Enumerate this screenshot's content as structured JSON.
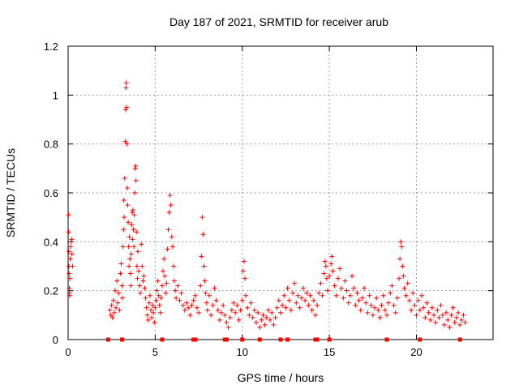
{
  "chart_data": {
    "type": "scatter",
    "title": "Day 187 of 2021, SRMTID for receiver arub",
    "xlabel": "GPS time / hours",
    "ylabel": "SRMTID / TECUs",
    "xlim": [
      0,
      24.4
    ],
    "ylim": [
      0,
      1.2
    ],
    "xticks": [
      0,
      5,
      10,
      15,
      20
    ],
    "yticks": [
      0,
      0.2,
      0.4,
      0.6,
      0.8,
      1,
      1.2
    ],
    "ytick_labels": [
      "0",
      "0.2",
      "0.4",
      "0.6",
      "0.8",
      "1",
      "1.2"
    ],
    "grid": true,
    "marker": "plus",
    "color": "#ff0000",
    "series": [
      {
        "name": "SRMTID",
        "points": [
          [
            0.02,
            0.51
          ],
          [
            0.03,
            0.44
          ],
          [
            0.04,
            0.36
          ],
          [
            0.05,
            0.3
          ],
          [
            0.06,
            0.27
          ],
          [
            0.07,
            0.21
          ],
          [
            0.08,
            0.19
          ],
          [
            0.09,
            0.18
          ],
          [
            0.1,
            0.25
          ],
          [
            0.12,
            0.33
          ],
          [
            0.15,
            0.38
          ],
          [
            0.18,
            0.4
          ],
          [
            0.2,
            0.41
          ],
          [
            0.22,
            0.35
          ],
          [
            0.25,
            0.3
          ],
          [
            2.4,
            0.12
          ],
          [
            2.45,
            0.1
          ],
          [
            2.5,
            0.14
          ],
          [
            2.55,
            0.09
          ],
          [
            2.6,
            0.16
          ],
          [
            2.65,
            0.11
          ],
          [
            2.7,
            0.2
          ],
          [
            2.75,
            0.13
          ],
          [
            2.8,
            0.24
          ],
          [
            2.85,
            0.15
          ],
          [
            2.9,
            0.19
          ],
          [
            2.95,
            0.12
          ],
          [
            3.0,
            0.27
          ],
          [
            3.05,
            0.31
          ],
          [
            3.1,
            0.22
          ],
          [
            3.12,
            0.17
          ],
          [
            3.15,
            0.38
          ],
          [
            3.18,
            0.45
          ],
          [
            3.2,
            0.57
          ],
          [
            3.22,
            0.5
          ],
          [
            3.25,
            0.66
          ],
          [
            3.28,
            0.81
          ],
          [
            3.3,
            0.94
          ],
          [
            3.32,
            1.03
          ],
          [
            3.34,
            1.05
          ],
          [
            3.36,
            0.95
          ],
          [
            3.38,
            0.8
          ],
          [
            3.4,
            0.62
          ],
          [
            3.42,
            0.55
          ],
          [
            3.45,
            0.48
          ],
          [
            3.48,
            0.38
          ],
          [
            3.5,
            0.3
          ],
          [
            3.52,
            0.42
          ],
          [
            3.55,
            0.33
          ],
          [
            3.58,
            0.27
          ],
          [
            3.6,
            0.22
          ],
          [
            3.62,
            0.35
          ],
          [
            3.65,
            0.47
          ],
          [
            3.68,
            0.52
          ],
          [
            3.7,
            0.41
          ],
          [
            3.72,
            0.53
          ],
          [
            3.75,
            0.45
          ],
          [
            3.78,
            0.38
          ],
          [
            3.8,
            0.51
          ],
          [
            3.82,
            0.6
          ],
          [
            3.85,
            0.7
          ],
          [
            3.88,
            0.71
          ],
          [
            3.9,
            0.65
          ],
          [
            3.92,
            0.44
          ],
          [
            3.95,
            0.3
          ],
          [
            3.98,
            0.25
          ],
          [
            4.0,
            0.36
          ],
          [
            4.05,
            0.28
          ],
          [
            4.1,
            0.22
          ],
          [
            4.15,
            0.19
          ],
          [
            4.2,
            0.39
          ],
          [
            4.25,
            0.3
          ],
          [
            4.3,
            0.24
          ],
          [
            4.35,
            0.26
          ],
          [
            4.4,
            0.21
          ],
          [
            4.45,
            0.17
          ],
          [
            4.5,
            0.13
          ],
          [
            4.55,
            0.1
          ],
          [
            4.6,
            0.08
          ],
          [
            4.65,
            0.15
          ],
          [
            4.7,
            0.18
          ],
          [
            4.75,
            0.12
          ],
          [
            4.8,
            0.09
          ],
          [
            4.85,
            0.14
          ],
          [
            4.9,
            0.11
          ],
          [
            4.95,
            0.07
          ],
          [
            5.0,
            0.13
          ],
          [
            5.05,
            0.16
          ],
          [
            5.1,
            0.2
          ],
          [
            5.15,
            0.24
          ],
          [
            5.2,
            0.18
          ],
          [
            5.25,
            0.14
          ],
          [
            5.3,
            0.11
          ],
          [
            5.35,
            0.17
          ],
          [
            5.4,
            0.22
          ],
          [
            5.45,
            0.28
          ],
          [
            5.5,
            0.33
          ],
          [
            5.55,
            0.26
          ],
          [
            5.6,
            0.19
          ],
          [
            5.65,
            0.23
          ],
          [
            5.7,
            0.37
          ],
          [
            5.75,
            0.45
          ],
          [
            5.8,
            0.52
          ],
          [
            5.85,
            0.59
          ],
          [
            5.9,
            0.55
          ],
          [
            5.95,
            0.42
          ],
          [
            6.0,
            0.38
          ],
          [
            6.05,
            0.3
          ],
          [
            6.1,
            0.24
          ],
          [
            6.15,
            0.2
          ],
          [
            6.2,
            0.17
          ],
          [
            6.3,
            0.22
          ],
          [
            6.4,
            0.16
          ],
          [
            6.5,
            0.19
          ],
          [
            6.6,
            0.14
          ],
          [
            6.7,
            0.12
          ],
          [
            6.8,
            0.15
          ],
          [
            6.9,
            0.13
          ],
          [
            7.0,
            0.1
          ],
          [
            7.1,
            0.14
          ],
          [
            7.2,
            0.16
          ],
          [
            7.3,
            0.18
          ],
          [
            7.4,
            0.13
          ],
          [
            7.5,
            0.11
          ],
          [
            7.6,
            0.22
          ],
          [
            7.65,
            0.34
          ],
          [
            7.7,
            0.5
          ],
          [
            7.75,
            0.43
          ],
          [
            7.8,
            0.3
          ],
          [
            7.85,
            0.24
          ],
          [
            7.9,
            0.19
          ],
          [
            7.95,
            0.15
          ],
          [
            8.0,
            0.12
          ],
          [
            8.1,
            0.18
          ],
          [
            8.2,
            0.1
          ],
          [
            8.3,
            0.14
          ],
          [
            8.4,
            0.21
          ],
          [
            8.5,
            0.16
          ],
          [
            8.6,
            0.12
          ],
          [
            8.7,
            0.08
          ],
          [
            8.8,
            0.11
          ],
          [
            8.9,
            0.14
          ],
          [
            9.0,
            0.1
          ],
          [
            9.1,
            0.07
          ],
          [
            9.2,
            0.05
          ],
          [
            9.3,
            0.09
          ],
          [
            9.4,
            0.12
          ],
          [
            9.5,
            0.15
          ],
          [
            9.6,
            0.11
          ],
          [
            9.7,
            0.14
          ],
          [
            9.8,
            0.08
          ],
          [
            9.9,
            0.12
          ],
          [
            10.0,
            0.16
          ],
          [
            10.05,
            0.28
          ],
          [
            10.1,
            0.32
          ],
          [
            10.15,
            0.25
          ],
          [
            10.2,
            0.18
          ],
          [
            10.3,
            0.13
          ],
          [
            10.4,
            0.1
          ],
          [
            10.5,
            0.15
          ],
          [
            10.6,
            0.09
          ],
          [
            10.7,
            0.12
          ],
          [
            10.8,
            0.07
          ],
          [
            10.9,
            0.11
          ],
          [
            11.0,
            0.05
          ],
          [
            11.1,
            0.08
          ],
          [
            11.2,
            0.1
          ],
          [
            11.3,
            0.06
          ],
          [
            11.4,
            0.09
          ],
          [
            11.5,
            0.12
          ],
          [
            11.6,
            0.08
          ],
          [
            11.7,
            0.11
          ],
          [
            11.8,
            0.06
          ],
          [
            11.9,
            0.09
          ],
          [
            12.0,
            0.13
          ],
          [
            12.1,
            0.16
          ],
          [
            12.2,
            0.11
          ],
          [
            12.3,
            0.14
          ],
          [
            12.4,
            0.18
          ],
          [
            12.5,
            0.13
          ],
          [
            12.6,
            0.21
          ],
          [
            12.7,
            0.16
          ],
          [
            12.8,
            0.12
          ],
          [
            12.9,
            0.19
          ],
          [
            13.0,
            0.23
          ],
          [
            13.1,
            0.15
          ],
          [
            13.2,
            0.18
          ],
          [
            13.3,
            0.13
          ],
          [
            13.4,
            0.17
          ],
          [
            13.5,
            0.21
          ],
          [
            13.6,
            0.16
          ],
          [
            13.7,
            0.19
          ],
          [
            13.8,
            0.14
          ],
          [
            13.9,
            0.18
          ],
          [
            14.0,
            0.12
          ],
          [
            14.1,
            0.16
          ],
          [
            14.2,
            0.1
          ],
          [
            14.3,
            0.14
          ],
          [
            14.4,
            0.19
          ],
          [
            14.5,
            0.23
          ],
          [
            14.6,
            0.18
          ],
          [
            14.7,
            0.27
          ],
          [
            14.75,
            0.32
          ],
          [
            14.8,
            0.3
          ],
          [
            14.85,
            0.25
          ],
          [
            14.9,
            0.2
          ],
          [
            15.0,
            0.26
          ],
          [
            15.1,
            0.31
          ],
          [
            15.15,
            0.34
          ],
          [
            15.2,
            0.28
          ],
          [
            15.3,
            0.22
          ],
          [
            15.4,
            0.18
          ],
          [
            15.5,
            0.25
          ],
          [
            15.6,
            0.29
          ],
          [
            15.7,
            0.21
          ],
          [
            15.8,
            0.17
          ],
          [
            15.9,
            0.24
          ],
          [
            16.0,
            0.2
          ],
          [
            16.1,
            0.15
          ],
          [
            16.2,
            0.18
          ],
          [
            16.3,
            0.26
          ],
          [
            16.4,
            0.21
          ],
          [
            16.5,
            0.14
          ],
          [
            16.6,
            0.19
          ],
          [
            16.7,
            0.16
          ],
          [
            16.8,
            0.12
          ],
          [
            16.9,
            0.17
          ],
          [
            17.0,
            0.21
          ],
          [
            17.1,
            0.15
          ],
          [
            17.2,
            0.11
          ],
          [
            17.3,
            0.18
          ],
          [
            17.4,
            0.14
          ],
          [
            17.5,
            0.1
          ],
          [
            17.6,
            0.13
          ],
          [
            17.7,
            0.17
          ],
          [
            17.8,
            0.12
          ],
          [
            17.9,
            0.09
          ],
          [
            18.0,
            0.14
          ],
          [
            18.1,
            0.18
          ],
          [
            18.2,
            0.12
          ],
          [
            18.3,
            0.1
          ],
          [
            18.4,
            0.15
          ],
          [
            18.5,
            0.19
          ],
          [
            18.6,
            0.22
          ],
          [
            18.7,
            0.14
          ],
          [
            18.8,
            0.11
          ],
          [
            18.9,
            0.17
          ],
          [
            19.0,
            0.25
          ],
          [
            19.05,
            0.33
          ],
          [
            19.1,
            0.4
          ],
          [
            19.15,
            0.38
          ],
          [
            19.2,
            0.3
          ],
          [
            19.25,
            0.26
          ],
          [
            19.3,
            0.21
          ],
          [
            19.4,
            0.18
          ],
          [
            19.5,
            0.23
          ],
          [
            19.6,
            0.16
          ],
          [
            19.7,
            0.12
          ],
          [
            19.8,
            0.19
          ],
          [
            19.9,
            0.14
          ],
          [
            20.0,
            0.1
          ],
          [
            20.1,
            0.16
          ],
          [
            20.2,
            0.12
          ],
          [
            20.3,
            0.18
          ],
          [
            20.4,
            0.13
          ],
          [
            20.5,
            0.09
          ],
          [
            20.6,
            0.15
          ],
          [
            20.7,
            0.11
          ],
          [
            20.8,
            0.08
          ],
          [
            20.9,
            0.13
          ],
          [
            21.0,
            0.1
          ],
          [
            21.1,
            0.07
          ],
          [
            21.2,
            0.12
          ],
          [
            21.3,
            0.09
          ],
          [
            21.4,
            0.14
          ],
          [
            21.5,
            0.1
          ],
          [
            21.6,
            0.06
          ],
          [
            21.7,
            0.11
          ],
          [
            21.8,
            0.08
          ],
          [
            21.9,
            0.05
          ],
          [
            22.0,
            0.1
          ],
          [
            22.1,
            0.13
          ],
          [
            22.2,
            0.07
          ],
          [
            22.3,
            0.09
          ],
          [
            22.4,
            0.11
          ],
          [
            22.5,
            0.06
          ],
          [
            22.6,
            0.08
          ],
          [
            22.7,
            0.1
          ],
          [
            22.8,
            0.07
          ]
        ]
      }
    ],
    "baseline_markers_x": [
      2.3,
      3.1,
      5.4,
      7.2,
      7.3,
      9.0,
      9.1,
      10.0,
      11.0,
      12.2,
      12.6,
      14.2,
      14.3,
      15.0,
      18.3,
      20.2,
      22.5
    ]
  }
}
